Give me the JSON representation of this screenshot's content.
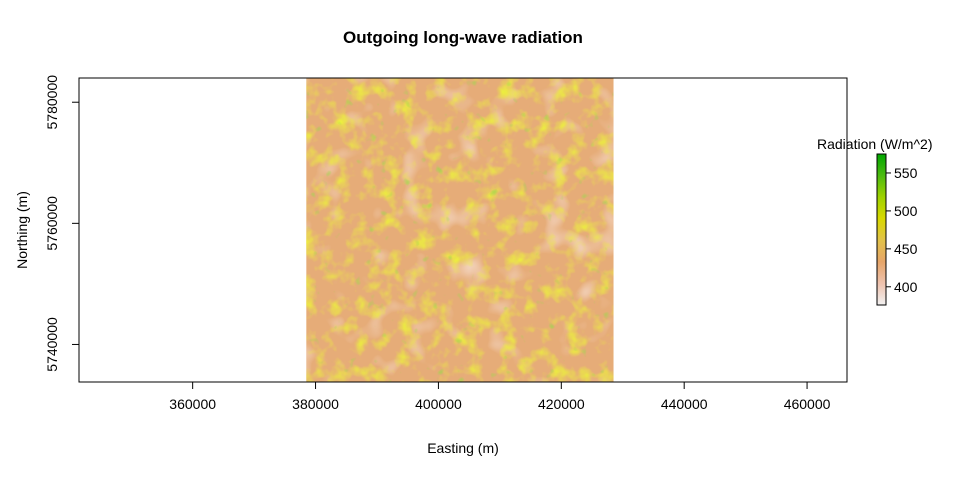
{
  "map": {
    "title": "Outgoing long-wave radiation",
    "xlabel": "Easting (m)",
    "ylabel": "Northing (m)",
    "x_ticks": [
      360000,
      380000,
      400000,
      420000,
      440000,
      460000
    ],
    "y_ticks": [
      5740000,
      5760000,
      5780000
    ],
    "x_range": [
      341500,
      466500
    ],
    "y_range": [
      5733800,
      5784000
    ],
    "raster_extent": {
      "x": [
        378500,
        428500
      ],
      "y": [
        5733800,
        5784000
      ]
    },
    "legend": {
      "title": "Radiation (W/m^2)",
      "ticks": [
        400,
        450,
        500,
        550
      ],
      "range": [
        376,
        575
      ],
      "colors": [
        "#f2f2f2",
        "#eec2ae",
        "#e6a569",
        "#e2c24a",
        "#d8d800",
        "#9fd200",
        "#4dbb10",
        "#00a600"
      ]
    }
  }
}
